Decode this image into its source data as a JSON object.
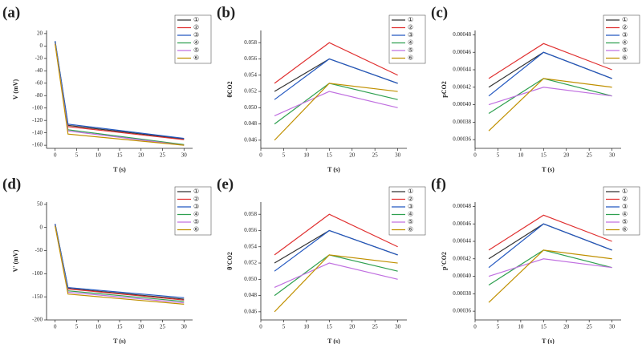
{
  "chart_data": [
    {
      "type": "line",
      "title": "(a)",
      "xlabel": "T (s)",
      "ylabel": "V (mV)",
      "x": [
        0,
        3,
        30
      ],
      "xlim": [
        -2,
        32
      ],
      "xticks": [
        0,
        5,
        10,
        15,
        20,
        25,
        30
      ],
      "ylim": [
        -165,
        25
      ],
      "yticks": [
        20,
        0,
        -20,
        -40,
        -60,
        -80,
        -100,
        -120,
        -140,
        -160
      ],
      "series": [
        {
          "name": "①",
          "color": "#333333",
          "values": [
            7,
            -128,
            -150
          ]
        },
        {
          "name": "②",
          "color": "#e03030",
          "values": [
            6,
            -130,
            -151
          ]
        },
        {
          "name": "③",
          "color": "#2358c0",
          "values": [
            8,
            -126,
            -149
          ]
        },
        {
          "name": "④",
          "color": "#2fa050",
          "values": [
            5,
            -135,
            -159
          ]
        },
        {
          "name": "⑤",
          "color": "#c070e0",
          "values": [
            4,
            -137,
            -160
          ]
        },
        {
          "name": "⑥",
          "color": "#c09000",
          "values": [
            3,
            -142,
            -160
          ]
        }
      ]
    },
    {
      "type": "line",
      "title": "(b)",
      "xlabel": "T (s)",
      "ylabel": "θCO2",
      "x": [
        3,
        15,
        30
      ],
      "xlim": [
        0,
        32
      ],
      "xticks": [
        0,
        5,
        10,
        15,
        20,
        25,
        30
      ],
      "ylim": [
        0.045,
        0.0595
      ],
      "yticks": [
        0.046,
        0.048,
        {
          "value": 0.05,
          "label": "0.050"
        },
        0.052,
        0.054,
        0.056,
        0.058
      ],
      "series": [
        {
          "name": "①",
          "color": "#333333",
          "values": [
            0.052,
            0.056,
            0.053
          ]
        },
        {
          "name": "②",
          "color": "#e03030",
          "values": [
            0.053,
            0.058,
            0.054
          ]
        },
        {
          "name": "③",
          "color": "#2358c0",
          "values": [
            0.051,
            0.056,
            0.053
          ]
        },
        {
          "name": "④",
          "color": "#2fa050",
          "values": [
            0.048,
            0.053,
            0.051
          ]
        },
        {
          "name": "⑤",
          "color": "#c070e0",
          "values": [
            0.049,
            0.052,
            0.05
          ]
        },
        {
          "name": "⑥",
          "color": "#c09000",
          "values": [
            0.046,
            0.053,
            0.052
          ]
        }
      ]
    },
    {
      "type": "line",
      "title": "(c)",
      "xlabel": "T (s)",
      "ylabel": "pCO2",
      "x": [
        3,
        15,
        30
      ],
      "xlim": [
        0,
        32
      ],
      "xticks": [
        0,
        5,
        10,
        15,
        20,
        25,
        30
      ],
      "ylim": [
        0.00035,
        0.000485
      ],
      "yticks": [
        0.00036,
        0.00038,
        {
          "value": 0.0004,
          "label": "0.00040"
        },
        0.00042,
        0.00044,
        0.00046,
        0.00048
      ],
      "series": [
        {
          "name": "①",
          "color": "#333333",
          "values": [
            0.00042,
            0.00046,
            0.00043
          ]
        },
        {
          "name": "②",
          "color": "#e03030",
          "values": [
            0.00043,
            0.00047,
            0.00044
          ]
        },
        {
          "name": "③",
          "color": "#2358c0",
          "values": [
            0.00041,
            0.00046,
            0.00043
          ]
        },
        {
          "name": "④",
          "color": "#2fa050",
          "values": [
            0.00039,
            0.00043,
            0.00041
          ]
        },
        {
          "name": "⑤",
          "color": "#c070e0",
          "values": [
            0.0004,
            0.00042,
            0.00041
          ]
        },
        {
          "name": "⑥",
          "color": "#c09000",
          "values": [
            0.00037,
            0.00043,
            0.00042
          ]
        }
      ]
    },
    {
      "type": "line",
      "title": "(d)",
      "xlabel": "T (s)",
      "ylabel": "V' (mV)",
      "x": [
        0,
        3,
        30
      ],
      "xlim": [
        -2,
        32
      ],
      "xticks": [
        0,
        5,
        10,
        15,
        20,
        25,
        30
      ],
      "ylim": [
        -200,
        55
      ],
      "yticks": [
        50,
        0,
        -50,
        -100,
        -150,
        -200
      ],
      "series": [
        {
          "name": "①",
          "color": "#333333",
          "values": [
            7,
            -132,
            -155
          ]
        },
        {
          "name": "②",
          "color": "#e03030",
          "values": [
            6,
            -133,
            -157
          ]
        },
        {
          "name": "③",
          "color": "#2358c0",
          "values": [
            8,
            -130,
            -152
          ]
        },
        {
          "name": "④",
          "color": "#2fa050",
          "values": [
            5,
            -137,
            -160
          ]
        },
        {
          "name": "⑤",
          "color": "#c070e0",
          "values": [
            4,
            -140,
            -163
          ]
        },
        {
          "name": "⑥",
          "color": "#c09000",
          "values": [
            3,
            -144,
            -166
          ]
        }
      ]
    },
    {
      "type": "line",
      "title": "(e)",
      "xlabel": "T (s)",
      "ylabel": "θ'CO2",
      "x": [
        3,
        15,
        30
      ],
      "xlim": [
        0,
        32
      ],
      "xticks": [
        0,
        5,
        10,
        15,
        20,
        25,
        30
      ],
      "ylim": [
        0.045,
        0.0595
      ],
      "yticks": [
        0.046,
        0.048,
        {
          "value": 0.05,
          "label": "0.050"
        },
        0.052,
        0.054,
        0.056,
        0.058
      ],
      "series": [
        {
          "name": "①",
          "color": "#333333",
          "values": [
            0.052,
            0.056,
            0.053
          ]
        },
        {
          "name": "②",
          "color": "#e03030",
          "values": [
            0.053,
            0.058,
            0.054
          ]
        },
        {
          "name": "③",
          "color": "#2358c0",
          "values": [
            0.051,
            0.056,
            0.053
          ]
        },
        {
          "name": "④",
          "color": "#2fa050",
          "values": [
            0.048,
            0.053,
            0.051
          ]
        },
        {
          "name": "⑤",
          "color": "#c070e0",
          "values": [
            0.049,
            0.052,
            0.05
          ]
        },
        {
          "name": "⑥",
          "color": "#c09000",
          "values": [
            0.046,
            0.053,
            0.052
          ]
        }
      ]
    },
    {
      "type": "line",
      "title": "(f)",
      "xlabel": "T (s)",
      "ylabel": "p'CO2",
      "x": [
        3,
        15,
        30
      ],
      "xlim": [
        0,
        32
      ],
      "xticks": [
        0,
        5,
        10,
        15,
        20,
        25,
        30
      ],
      "ylim": [
        0.00035,
        0.000485
      ],
      "yticks": [
        0.00036,
        0.00038,
        {
          "value": 0.0004,
          "label": "0.00040"
        },
        0.00042,
        0.00044,
        0.00046,
        0.00048
      ],
      "series": [
        {
          "name": "①",
          "color": "#333333",
          "values": [
            0.00042,
            0.00046,
            0.00043
          ]
        },
        {
          "name": "②",
          "color": "#e03030",
          "values": [
            0.00043,
            0.00047,
            0.00044
          ]
        },
        {
          "name": "③",
          "color": "#2358c0",
          "values": [
            0.00041,
            0.00046,
            0.00043
          ]
        },
        {
          "name": "④",
          "color": "#2fa050",
          "values": [
            0.00039,
            0.00043,
            0.00041
          ]
        },
        {
          "name": "⑤",
          "color": "#c070e0",
          "values": [
            0.0004,
            0.00042,
            0.00041
          ]
        },
        {
          "name": "⑥",
          "color": "#c09000",
          "values": [
            0.00037,
            0.00043,
            0.00042
          ]
        }
      ]
    }
  ]
}
